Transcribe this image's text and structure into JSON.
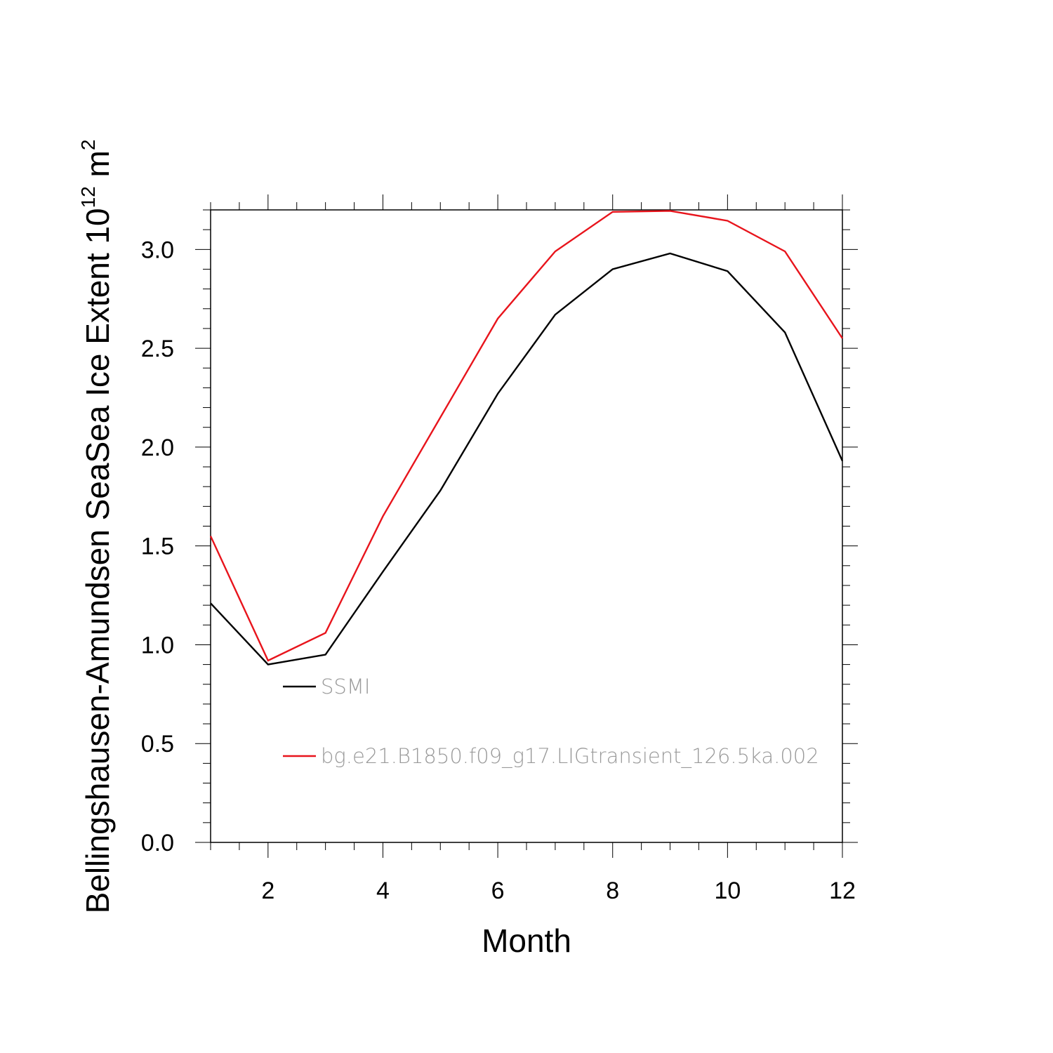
{
  "chart_data": {
    "type": "line",
    "title": "",
    "xlabel": "Month",
    "ylabel_main": "Bellingshausen-Amundsen SeaSea Ice Extent 10",
    "ylabel_exponent": "12",
    "ylabel_unit": " m",
    "ylabel_unit_exponent": "2",
    "xlim": [
      1,
      12
    ],
    "ylim": [
      0,
      3.2
    ],
    "x": [
      1,
      2,
      3,
      4,
      5,
      6,
      7,
      8,
      9,
      10,
      11,
      12
    ],
    "x_major_ticks": [
      2,
      4,
      6,
      8,
      10,
      12
    ],
    "x_tick_labels": [
      "2",
      "4",
      "6",
      "8",
      "10",
      "12"
    ],
    "y_major_ticks": [
      0.0,
      0.5,
      1.0,
      1.5,
      2.0,
      2.5,
      3.0
    ],
    "y_tick_labels": [
      "0.0",
      "0.5",
      "1.0",
      "1.5",
      "2.0",
      "2.5",
      "3.0"
    ],
    "grid": false,
    "legend_position": "inside-left",
    "series": [
      {
        "name": "SSMI",
        "color": "#000000",
        "values": [
          1.21,
          0.9,
          0.95,
          1.37,
          1.78,
          2.27,
          2.67,
          2.9,
          2.98,
          2.89,
          2.58,
          1.93
        ]
      },
      {
        "name": "bg.e21.B1850.f09_g17.LIGtransient_126.5ka.002",
        "color": "#e8141c",
        "values": [
          1.55,
          0.92,
          1.06,
          1.65,
          2.15,
          2.65,
          2.99,
          3.19,
          3.195,
          3.145,
          2.99,
          2.55
        ]
      }
    ]
  }
}
